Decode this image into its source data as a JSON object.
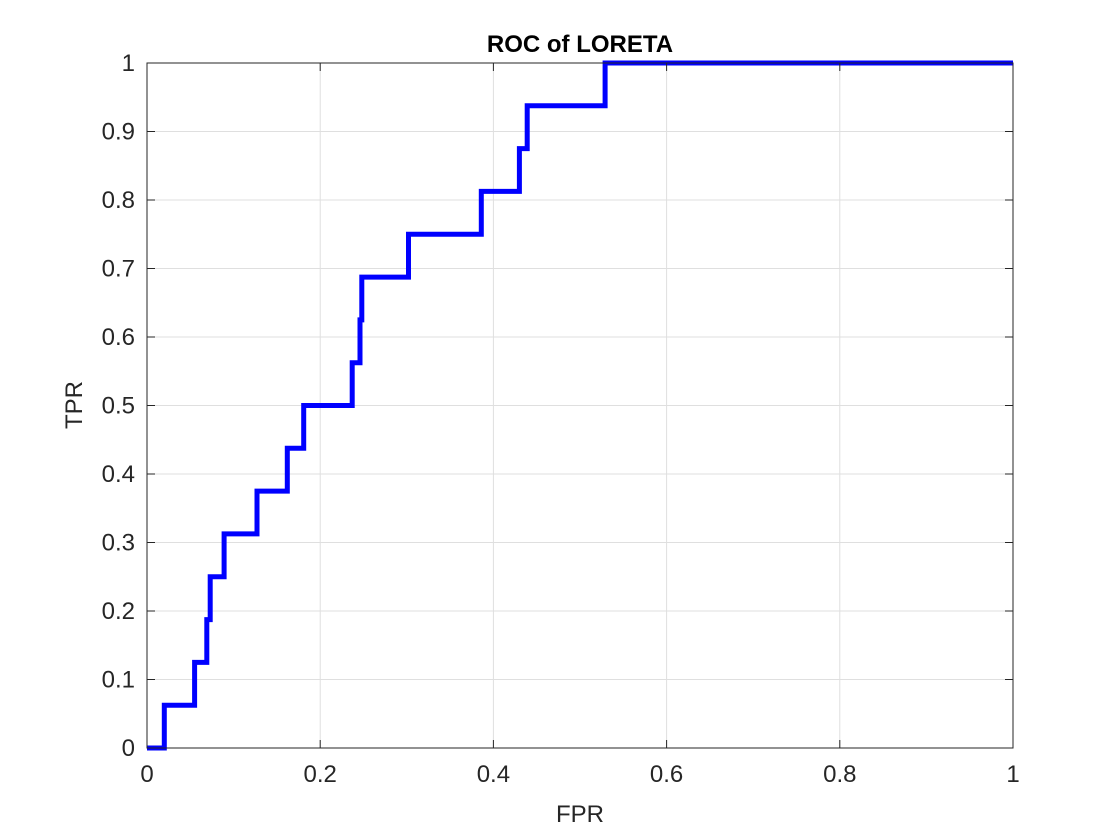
{
  "chart_data": {
    "type": "line",
    "title": "ROC of LORETA",
    "xlabel": "FPR",
    "ylabel": "TPR",
    "xlim": [
      0,
      1
    ],
    "ylim": [
      0,
      1
    ],
    "grid": true,
    "x_ticks": [
      "0",
      "0.2",
      "0.4",
      "0.6",
      "0.8",
      "1"
    ],
    "y_ticks": [
      "0",
      "0.1",
      "0.2",
      "0.3",
      "0.4",
      "0.5",
      "0.6",
      "0.7",
      "0.8",
      "0.9",
      "1"
    ],
    "series": [
      {
        "color": "#0000ff",
        "x": [
          0,
          0.02,
          0.02,
          0.055,
          0.055,
          0.069,
          0.069,
          0.073,
          0.073,
          0.089,
          0.089,
          0.127,
          0.127,
          0.162,
          0.162,
          0.181,
          0.181,
          0.237,
          0.237,
          0.246,
          0.246,
          0.248,
          0.248,
          0.302,
          0.302,
          0.386,
          0.386,
          0.43,
          0.43,
          0.439,
          0.439,
          0.529,
          0.529,
          1.0
        ],
        "y": [
          0,
          0,
          0.0625,
          0.0625,
          0.125,
          0.125,
          0.1875,
          0.1875,
          0.25,
          0.25,
          0.3125,
          0.3125,
          0.375,
          0.375,
          0.4375,
          0.4375,
          0.5,
          0.5,
          0.5625,
          0.5625,
          0.625,
          0.625,
          0.6875,
          0.6875,
          0.75,
          0.75,
          0.8125,
          0.8125,
          0.875,
          0.875,
          0.9375,
          0.9375,
          1.0,
          1.0
        ]
      }
    ]
  }
}
